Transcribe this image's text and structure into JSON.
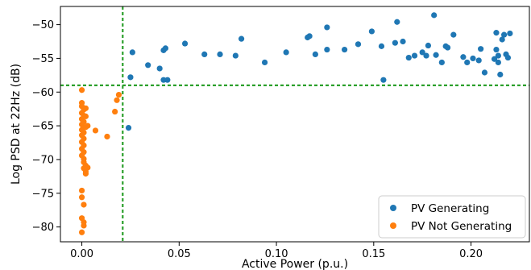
{
  "chart_data": {
    "type": "scatter",
    "xlabel": "Active Power (p.u.)",
    "ylabel": "Log PSD at 22Hz (dB)",
    "xlim": [
      -0.011,
      0.23
    ],
    "ylim": [
      -82.2,
      -47.3
    ],
    "x_ticks": [
      0.0,
      0.05,
      0.1,
      0.15,
      0.2
    ],
    "x_tick_labels": [
      "0.00",
      "0.05",
      "0.10",
      "0.15",
      "0.20"
    ],
    "y_ticks": [
      -80,
      -75,
      -70,
      -65,
      -60,
      -55,
      -50
    ],
    "y_tick_labels": [
      "−80",
      "−75",
      "−70",
      "−65",
      "−60",
      "−55",
      "−50"
    ],
    "grid": false,
    "legend_position": "bottom-right",
    "thresholds": {
      "x": 0.021,
      "y": -59.0,
      "color": "#2ca02c",
      "style": "dashed"
    },
    "series": [
      {
        "name": "PV Generating",
        "color": "#1f77b4",
        "points": [
          [
            0.024,
            -65.3
          ],
          [
            0.025,
            -57.8
          ],
          [
            0.026,
            -54.1
          ],
          [
            0.034,
            -56.0
          ],
          [
            0.04,
            -56.5
          ],
          [
            0.042,
            -53.8
          ],
          [
            0.043,
            -53.5
          ],
          [
            0.042,
            -58.2
          ],
          [
            0.044,
            -58.2
          ],
          [
            0.053,
            -52.8
          ],
          [
            0.063,
            -54.4
          ],
          [
            0.071,
            -54.4
          ],
          [
            0.079,
            -54.6
          ],
          [
            0.082,
            -52.1
          ],
          [
            0.094,
            -55.6
          ],
          [
            0.105,
            -54.1
          ],
          [
            0.116,
            -51.9
          ],
          [
            0.117,
            -51.7
          ],
          [
            0.12,
            -54.4
          ],
          [
            0.126,
            -50.4
          ],
          [
            0.126,
            -53.7
          ],
          [
            0.135,
            -53.7
          ],
          [
            0.142,
            -52.9
          ],
          [
            0.149,
            -51.0
          ],
          [
            0.154,
            -53.2
          ],
          [
            0.155,
            -58.2
          ],
          [
            0.161,
            -52.7
          ],
          [
            0.162,
            -49.6
          ],
          [
            0.165,
            -52.5
          ],
          [
            0.168,
            -54.9
          ],
          [
            0.171,
            -54.6
          ],
          [
            0.175,
            -54.1
          ],
          [
            0.177,
            -54.6
          ],
          [
            0.178,
            -53.1
          ],
          [
            0.181,
            -48.6
          ],
          [
            0.182,
            -54.5
          ],
          [
            0.185,
            -55.6
          ],
          [
            0.187,
            -53.2
          ],
          [
            0.188,
            -53.4
          ],
          [
            0.191,
            -51.5
          ],
          [
            0.196,
            -54.8
          ],
          [
            0.198,
            -55.6
          ],
          [
            0.201,
            -55.0
          ],
          [
            0.204,
            -55.3
          ],
          [
            0.205,
            -53.6
          ],
          [
            0.207,
            -57.1
          ],
          [
            0.212,
            -55.1
          ],
          [
            0.213,
            -53.7
          ],
          [
            0.213,
            -51.2
          ],
          [
            0.214,
            -54.6
          ],
          [
            0.214,
            -55.6
          ],
          [
            0.215,
            -57.4
          ],
          [
            0.216,
            -52.2
          ],
          [
            0.217,
            -51.5
          ],
          [
            0.218,
            -54.4
          ],
          [
            0.219,
            -54.9
          ],
          [
            0.22,
            -51.3
          ]
        ]
      },
      {
        "name": "PV Not Generating",
        "color": "#ff7f0e",
        "points": [
          [
            0.0,
            -59.7
          ],
          [
            0.0,
            -61.6
          ],
          [
            0.0,
            -62.1
          ],
          [
            0.001,
            -62.6
          ],
          [
            0.0,
            -63.1
          ],
          [
            0.001,
            -63.5
          ],
          [
            0.0,
            -64.0
          ],
          [
            0.001,
            -64.4
          ],
          [
            0.0,
            -64.8
          ],
          [
            0.001,
            -65.2
          ],
          [
            0.0,
            -65.6
          ],
          [
            0.001,
            -66.0
          ],
          [
            0.0,
            -66.4
          ],
          [
            0.001,
            -66.9
          ],
          [
            0.0,
            -67.4
          ],
          [
            0.001,
            -67.9
          ],
          [
            0.0,
            -68.4
          ],
          [
            0.001,
            -68.9
          ],
          [
            0.0,
            -69.4
          ],
          [
            0.001,
            -69.9
          ],
          [
            0.001,
            -70.4
          ],
          [
            0.002,
            -70.9
          ],
          [
            0.001,
            -71.3
          ],
          [
            0.002,
            -71.8
          ],
          [
            0.002,
            -72.1
          ],
          [
            0.002,
            -62.4
          ],
          [
            0.002,
            -63.6
          ],
          [
            0.002,
            -65.2
          ],
          [
            0.003,
            -65.0
          ],
          [
            0.003,
            -71.2
          ],
          [
            0.0,
            -74.6
          ],
          [
            0.0,
            -75.6
          ],
          [
            0.001,
            -76.7
          ],
          [
            0.0,
            -78.7
          ],
          [
            0.001,
            -79.3
          ],
          [
            0.001,
            -79.8
          ],
          [
            0.0,
            -80.8
          ],
          [
            0.007,
            -65.7
          ],
          [
            0.013,
            -66.6
          ],
          [
            0.017,
            -62.9
          ],
          [
            0.018,
            -61.2
          ],
          [
            0.019,
            -60.4
          ]
        ]
      }
    ]
  }
}
